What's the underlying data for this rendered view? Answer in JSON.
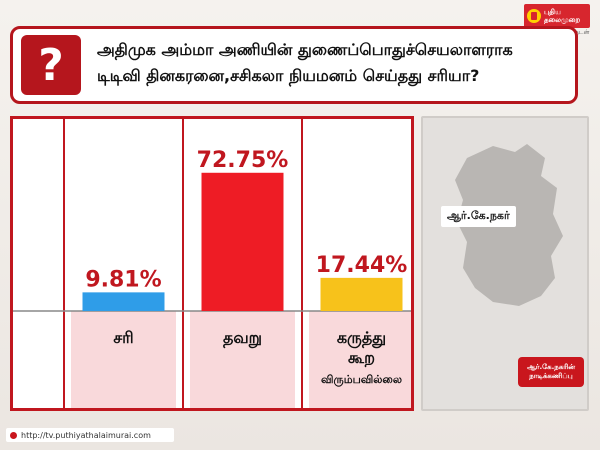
{
  "logo": {
    "line1": "புதிய",
    "line2": "தலைமுறை",
    "tagline": "உண்மை உடனுக்குடன்"
  },
  "question": {
    "line1": "அதிமுக அம்மா அணியின் துணைப்பொதுச்செயலாளராக",
    "line2": "டிடிவி தினகரனை,சசிகலா நியமனம் செய்தது சரியா?"
  },
  "chart_data": {
    "type": "bar",
    "categories": [
      "சரி",
      "தவறு",
      "கருத்து கூற விரும்பவில்லை"
    ],
    "category_lines": [
      [
        "சரி"
      ],
      [
        "தவறு"
      ],
      [
        "கருத்து",
        "கூற",
        "விரும்பவில்லை"
      ]
    ],
    "values": [
      9.81,
      72.75,
      17.44
    ],
    "value_labels": [
      "9.81%",
      "72.75%",
      "17.44%"
    ],
    "colors": [
      "#2f9de8",
      "#ee1c25",
      "#f7c21b"
    ],
    "ylim": [
      0,
      100
    ],
    "grid": false,
    "legend": "none"
  },
  "map": {
    "label": "ஆர்.கே.நகர்",
    "fill": "#b9b6b3"
  },
  "badge": {
    "line1": "ஆர்.கே.நகரின்",
    "line2": "நாடிக்கணிப்பு"
  },
  "footer": {
    "url": "http://tv.puthiyathalaimurai.com"
  }
}
